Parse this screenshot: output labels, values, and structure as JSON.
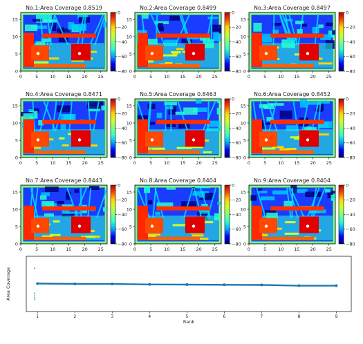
{
  "chart_data": [
    {
      "type": "heatmap",
      "panels": [
        {
          "title": "No.1:Area Coverage 0.8519"
        },
        {
          "title": "No.2:Area Coverage 0.8499"
        },
        {
          "title": "No.3:Area Coverage 0.8497"
        },
        {
          "title": "No.4:Area Coverage 0.8471"
        },
        {
          "title": "No.5:Area Coverage 0.8463"
        },
        {
          "title": "No.6:Area Coverage 0.8452"
        },
        {
          "title": "No.7:Area Coverage 0.8443"
        },
        {
          "title": "No.8:Area Coverage 0.8404"
        },
        {
          "title": "No.9:Area Coverage 0.8404"
        }
      ],
      "x_ticks": [
        "0",
        "5",
        "10",
        "15",
        "20",
        "25"
      ],
      "y_ticks": [
        "0",
        "5",
        "10",
        "15"
      ],
      "xlim": [
        0,
        27
      ],
      "ylim": [
        0,
        17
      ],
      "colorbar": {
        "ticks": [
          "0",
          "−20",
          "−40",
          "−60",
          "−80"
        ],
        "range": [
          -80,
          0
        ]
      },
      "colormap": [
        "#00007f",
        "#0000ff",
        "#00a4ff",
        "#2affcd",
        "#7fff7f",
        "#cdff2a",
        "#ffd400",
        "#ff4800",
        "#b30000"
      ]
    },
    {
      "type": "line",
      "xlabel": "Rank",
      "ylabel": "Area Coverage",
      "x_ticks": [
        "1",
        "2",
        "3",
        "4",
        "5",
        "6",
        "7",
        "8",
        "9"
      ],
      "xlim": [
        0.7,
        9.4
      ],
      "ylim": [
        0.7,
        1.0
      ],
      "series": [
        {
          "x": [
            1,
            2,
            3,
            4,
            5,
            6,
            7,
            8,
            9
          ],
          "values": [
            0.8519,
            0.8499,
            0.8497,
            0.8471,
            0.8463,
            0.8452,
            0.8443,
            0.8404,
            0.8404
          ],
          "color": "#1f77b4"
        }
      ],
      "scatter": {
        "x": [
          1,
          1,
          1,
          1,
          1
        ],
        "values": [
          0.935,
          0.8,
          0.785,
          0.775,
          0.765
        ]
      }
    }
  ]
}
